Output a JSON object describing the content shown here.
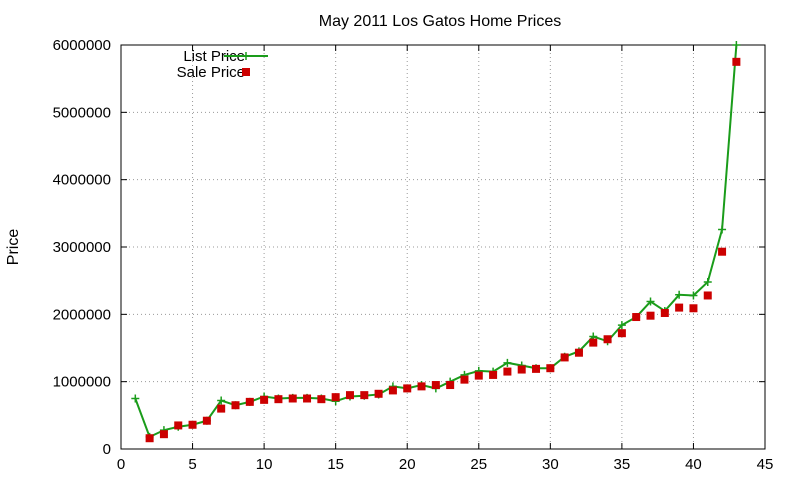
{
  "chart_data": {
    "type": "line",
    "title": "May 2011 Los Gatos Home Prices",
    "xlabel": "",
    "ylabel": "Price",
    "xlim": [
      0,
      45
    ],
    "ylim": [
      0,
      6000000
    ],
    "x_ticks": [
      0,
      5,
      10,
      15,
      20,
      25,
      30,
      35,
      40,
      45
    ],
    "y_ticks": [
      0,
      1000000,
      2000000,
      3000000,
      4000000,
      5000000,
      6000000
    ],
    "grid": true,
    "legend_position": "top-left",
    "series": [
      {
        "name": "List Price",
        "style": "line-plus",
        "color": "#1a9c1a",
        "x": [
          1,
          2,
          3,
          4,
          5,
          6,
          7,
          8,
          9,
          10,
          11,
          12,
          13,
          14,
          15,
          16,
          17,
          18,
          19,
          20,
          21,
          22,
          23,
          24,
          25,
          26,
          27,
          28,
          29,
          30,
          31,
          32,
          33,
          34,
          35,
          36,
          37,
          38,
          39,
          40,
          41,
          42,
          43
        ],
        "y": [
          750000,
          180000,
          280000,
          330000,
          360000,
          420000,
          720000,
          650000,
          700000,
          780000,
          750000,
          760000,
          760000,
          750000,
          710000,
          780000,
          790000,
          810000,
          930000,
          900000,
          950000,
          900000,
          1000000,
          1100000,
          1160000,
          1150000,
          1280000,
          1240000,
          1200000,
          1200000,
          1370000,
          1450000,
          1670000,
          1600000,
          1840000,
          1960000,
          2190000,
          2050000,
          2290000,
          2280000,
          2480000,
          3260000,
          6000000
        ]
      },
      {
        "name": "Sale Price",
        "style": "square-markers",
        "color": "#cc0000",
        "x": [
          2,
          3,
          4,
          5,
          6,
          7,
          8,
          9,
          10,
          11,
          12,
          13,
          14,
          15,
          16,
          17,
          18,
          19,
          20,
          21,
          22,
          23,
          24,
          25,
          26,
          27,
          28,
          29,
          30,
          31,
          32,
          33,
          34,
          35,
          36,
          37,
          38,
          39,
          40,
          41,
          42,
          43
        ],
        "y": [
          160000,
          220000,
          350000,
          360000,
          420000,
          600000,
          650000,
          700000,
          730000,
          740000,
          750000,
          750000,
          740000,
          770000,
          800000,
          800000,
          820000,
          870000,
          900000,
          930000,
          950000,
          950000,
          1030000,
          1090000,
          1100000,
          1150000,
          1180000,
          1190000,
          1200000,
          1360000,
          1430000,
          1580000,
          1630000,
          1720000,
          1960000,
          1980000,
          2020000,
          2100000,
          2090000,
          2280000,
          2930000,
          5750000
        ]
      }
    ]
  }
}
